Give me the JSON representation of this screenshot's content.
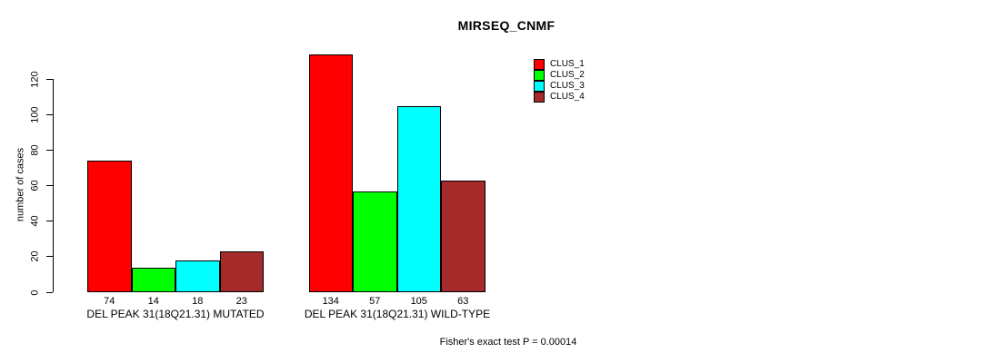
{
  "figure": {
    "background": "#FFFFFF",
    "foreground": "#000000"
  },
  "chart_data": {
    "type": "bar",
    "title": "MIRSEQ_CNMF",
    "xlabel": "",
    "ylabel": "number of cases",
    "ylim": [
      0,
      134
    ],
    "yticks": [
      0,
      20,
      40,
      60,
      80,
      100,
      120
    ],
    "grid": false,
    "legend_position": "top-right",
    "categories": [
      "DEL PEAK 31(18Q21.31) MUTATED",
      "DEL PEAK 31(18Q21.31) WILD-TYPE"
    ],
    "series": [
      {
        "name": "CLUS_1",
        "color": "#FF0000",
        "values": [
          74,
          134
        ]
      },
      {
        "name": "CLUS_2",
        "color": "#00FF00",
        "values": [
          14,
          57
        ]
      },
      {
        "name": "CLUS_3",
        "color": "#00FFFF",
        "values": [
          18,
          105
        ]
      },
      {
        "name": "CLUS_4",
        "color": "#A52A2A",
        "values": [
          23,
          63
        ]
      }
    ],
    "bar_value_labels": [
      [
        74,
        14,
        18,
        23
      ],
      [
        134,
        57,
        105,
        63
      ]
    ],
    "annotation": "Fisher's exact test P = 0.00014"
  }
}
